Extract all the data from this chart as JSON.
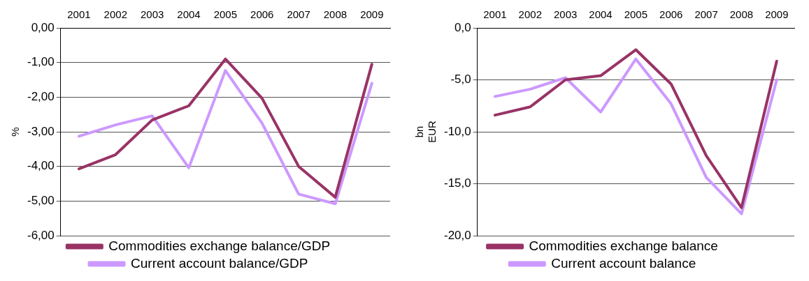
{
  "chart_data": [
    {
      "type": "line",
      "ylabel": "%",
      "categories": [
        "2001",
        "2002",
        "2003",
        "2004",
        "2005",
        "2006",
        "2007",
        "2008",
        "2009"
      ],
      "series": [
        {
          "name": "Commodities exchange balance/GDP",
          "color": "#993366",
          "values": [
            -4.07,
            -3.66,
            -2.66,
            -2.25,
            -0.9,
            -2.03,
            -4.0,
            -4.89,
            -1.05
          ]
        },
        {
          "name": "Current account balance/GDP",
          "color": "#cc99ff",
          "values": [
            -3.13,
            -2.8,
            -2.54,
            -4.04,
            -1.23,
            -2.75,
            -4.8,
            -5.08,
            -1.6
          ]
        }
      ],
      "ylim": [
        -6,
        0
      ],
      "yticks": [
        {
          "value": 0,
          "label": "0,00"
        },
        {
          "value": -1,
          "label": "-1,00"
        },
        {
          "value": -2,
          "label": "-2,00"
        },
        {
          "value": -3,
          "label": "-3,00"
        },
        {
          "value": -4,
          "label": "-4,00"
        },
        {
          "value": -5,
          "label": "-5,00"
        },
        {
          "value": -6,
          "label": "-6,00"
        }
      ],
      "grid": "y",
      "legend": "bottom",
      "marker": "none",
      "line_style": "solid"
    },
    {
      "type": "line",
      "ylabel": "bn EUR",
      "categories": [
        "2001",
        "2002",
        "2003",
        "2004",
        "2005",
        "2006",
        "2007",
        "2008",
        "2009"
      ],
      "series": [
        {
          "name": "Commodities exchange balance",
          "color": "#993366",
          "values": [
            -8.4,
            -7.6,
            -5.0,
            -4.6,
            -2.1,
            -5.4,
            -12.3,
            -17.3,
            -3.2
          ]
        },
        {
          "name": "Current account balance",
          "color": "#cc99ff",
          "values": [
            -6.6,
            -5.9,
            -4.8,
            -8.1,
            -3.0,
            -7.3,
            -14.4,
            -17.9,
            -5.0
          ]
        }
      ],
      "ylim": [
        -20,
        0
      ],
      "yticks": [
        {
          "value": 0,
          "label": "0,0"
        },
        {
          "value": -5,
          "label": "-5,0"
        },
        {
          "value": -10,
          "label": "-10,0"
        },
        {
          "value": -15,
          "label": "-15,0"
        },
        {
          "value": -20,
          "label": "-20,0"
        }
      ],
      "grid": "y",
      "legend": "bottom",
      "marker": "none",
      "line_style": "solid"
    }
  ]
}
